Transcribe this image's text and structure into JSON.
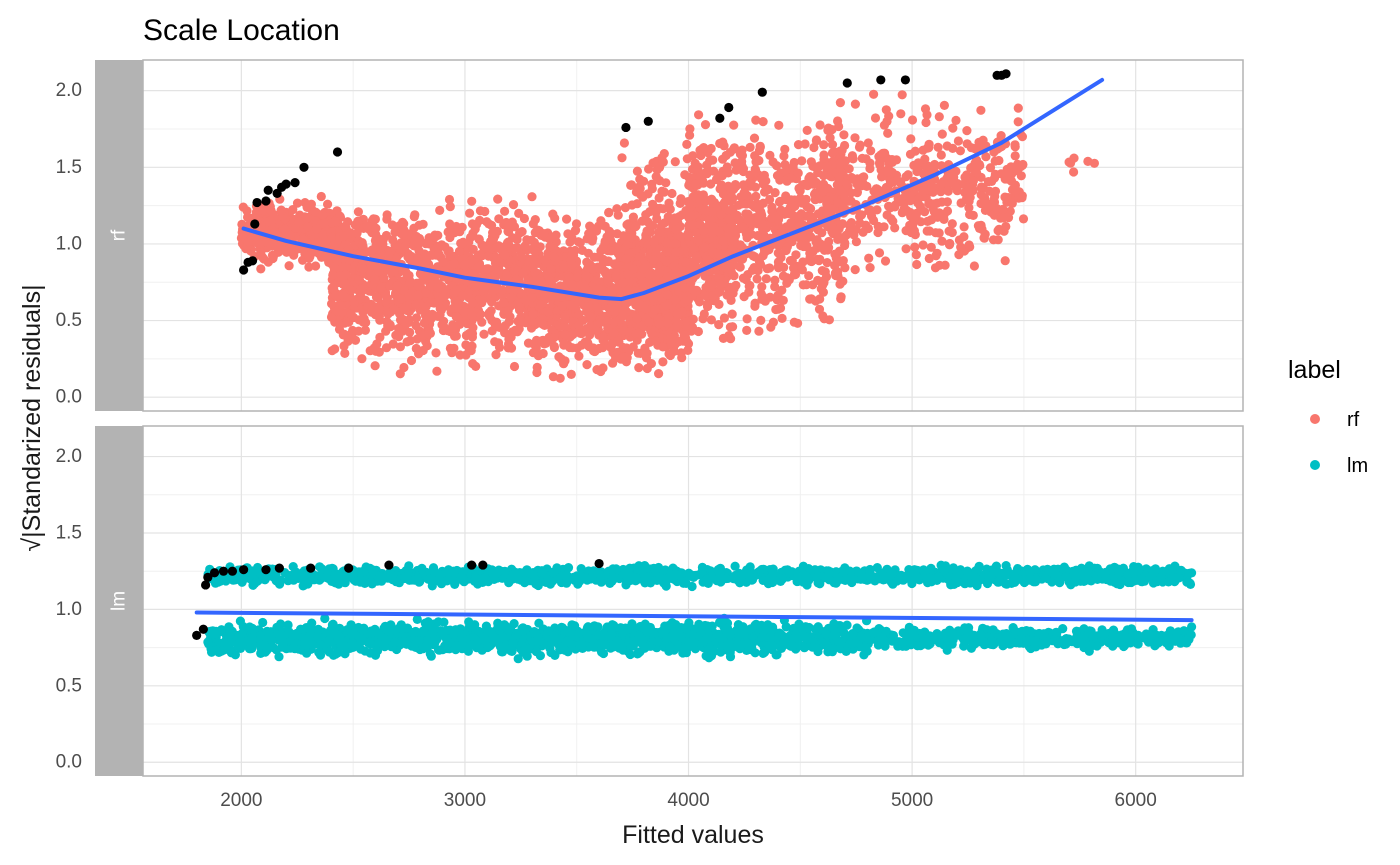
{
  "chart_data": {
    "type": "scatter",
    "title": "Scale Location",
    "xlabel": "Fitted values",
    "ylabel": "√|Standarized residuals|",
    "xlim": [
      1560,
      6480
    ],
    "ylim": [
      -0.09,
      2.2
    ],
    "x_ticks": [
      2000,
      3000,
      4000,
      5000,
      6000
    ],
    "y_ticks": [
      0.0,
      0.5,
      1.0,
      1.5,
      2.0
    ],
    "y_tick_labels": [
      "0.0",
      "0.5",
      "1.0",
      "1.5",
      "2.0"
    ],
    "grid": true,
    "legend": {
      "title": "label",
      "position": "right",
      "entries": [
        {
          "name": "rf",
          "color": "#F8766D"
        },
        {
          "name": "lm",
          "color": "#00BFC4"
        }
      ]
    },
    "colors": {
      "rf": "#F8766D",
      "lm": "#00BFC4",
      "smooth": "#3366FF",
      "outlier": "#000000",
      "strip": "#B3B3B3"
    },
    "panels": [
      {
        "label": "rf",
        "cloud": [
          {
            "x_range": [
              2000,
              2450
            ],
            "y_range": [
              0.78,
              1.35
            ],
            "count": 380
          },
          {
            "x_range": [
              2400,
              3300
            ],
            "y_range": [
              0.1,
              1.4
            ],
            "count": 1100
          },
          {
            "x_range": [
              3300,
              4000
            ],
            "y_range": [
              0.05,
              1.3
            ],
            "count": 1100
          },
          {
            "x_range": [
              3700,
              4200
            ],
            "y_range": [
              0.1,
              1.8
            ],
            "count": 450
          },
          {
            "x_range": [
              4000,
              4700
            ],
            "y_range": [
              0.3,
              1.95
            ],
            "count": 700
          },
          {
            "x_range": [
              4600,
              5500
            ],
            "y_range": [
              0.7,
              2.05
            ],
            "count": 500
          },
          {
            "x_range": [
              5700,
              5850
            ],
            "y_range": [
              1.35,
              1.7
            ],
            "count": 6
          }
        ],
        "outliers": [
          {
            "x": 2010,
            "y": 0.83
          },
          {
            "x": 2030,
            "y": 0.88
          },
          {
            "x": 2050,
            "y": 0.89
          },
          {
            "x": 2060,
            "y": 1.13
          },
          {
            "x": 2070,
            "y": 1.27
          },
          {
            "x": 2110,
            "y": 1.28
          },
          {
            "x": 2120,
            "y": 1.35
          },
          {
            "x": 2160,
            "y": 1.33
          },
          {
            "x": 2180,
            "y": 1.37
          },
          {
            "x": 2200,
            "y": 1.39
          },
          {
            "x": 2240,
            "y": 1.4
          },
          {
            "x": 2280,
            "y": 1.5
          },
          {
            "x": 2430,
            "y": 1.6
          },
          {
            "x": 3720,
            "y": 1.76
          },
          {
            "x": 3820,
            "y": 1.8
          },
          {
            "x": 4140,
            "y": 1.82
          },
          {
            "x": 4180,
            "y": 1.89
          },
          {
            "x": 4330,
            "y": 1.99
          },
          {
            "x": 4710,
            "y": 2.05
          },
          {
            "x": 4860,
            "y": 2.07
          },
          {
            "x": 4970,
            "y": 2.07
          },
          {
            "x": 5380,
            "y": 2.1
          },
          {
            "x": 5400,
            "y": 2.1
          },
          {
            "x": 5420,
            "y": 2.11
          }
        ],
        "smooth": {
          "x": [
            2010,
            2200,
            2500,
            2800,
            3000,
            3300,
            3600,
            3700,
            3800,
            4000,
            4200,
            4500,
            4800,
            5100,
            5400,
            5850
          ],
          "y": [
            1.1,
            1.02,
            0.92,
            0.84,
            0.78,
            0.72,
            0.65,
            0.64,
            0.68,
            0.79,
            0.92,
            1.09,
            1.26,
            1.45,
            1.66,
            2.07
          ]
        }
      },
      {
        "label": "lm",
        "cloud": [
          {
            "x_range": [
              1850,
              6250
            ],
            "y_range": [
              1.14,
              1.3
            ],
            "count": 1300
          },
          {
            "x_range": [
              1850,
              4800
            ],
            "y_range": [
              0.67,
              0.95
            ],
            "count": 1500
          },
          {
            "x_range": [
              4800,
              6250
            ],
            "y_range": [
              0.72,
              0.9
            ],
            "count": 400
          }
        ],
        "outliers": [
          {
            "x": 1800,
            "y": 0.83
          },
          {
            "x": 1830,
            "y": 0.87
          },
          {
            "x": 1840,
            "y": 1.16
          },
          {
            "x": 1850,
            "y": 1.21
          },
          {
            "x": 1880,
            "y": 1.24
          },
          {
            "x": 1920,
            "y": 1.25
          },
          {
            "x": 1960,
            "y": 1.25
          },
          {
            "x": 2010,
            "y": 1.26
          },
          {
            "x": 2110,
            "y": 1.26
          },
          {
            "x": 2170,
            "y": 1.27
          },
          {
            "x": 2310,
            "y": 1.27
          },
          {
            "x": 2480,
            "y": 1.27
          },
          {
            "x": 2660,
            "y": 1.29
          },
          {
            "x": 3030,
            "y": 1.29
          },
          {
            "x": 3080,
            "y": 1.29
          },
          {
            "x": 3600,
            "y": 1.3
          }
        ],
        "smooth": {
          "x": [
            1800,
            6250
          ],
          "y": [
            0.98,
            0.93
          ]
        }
      }
    ]
  }
}
